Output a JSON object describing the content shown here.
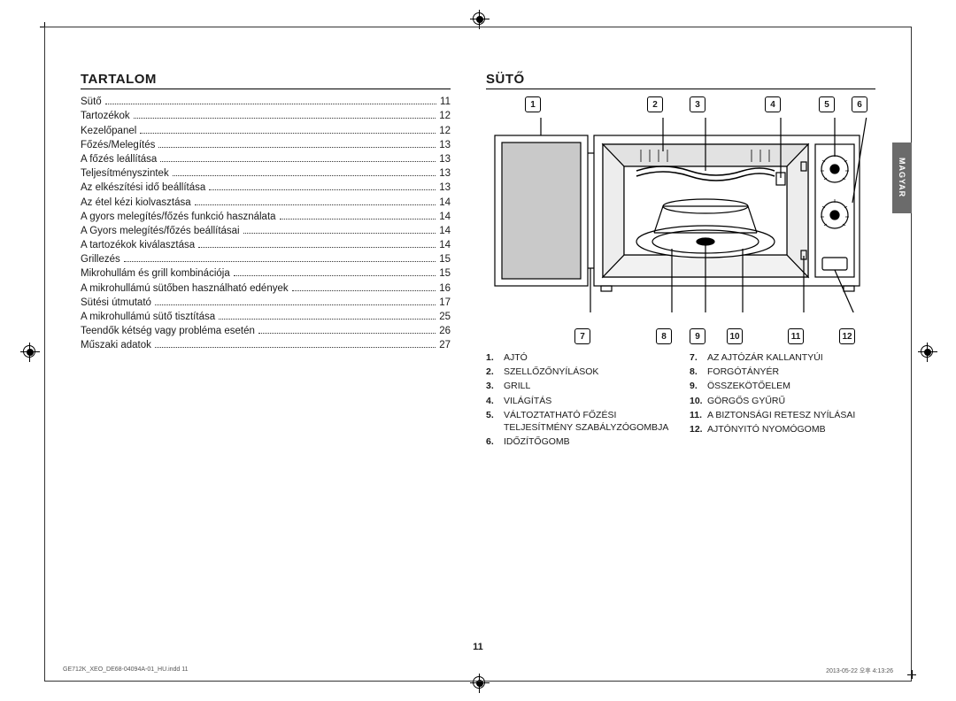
{
  "language_tab": "MAGYAR",
  "page_number": "11",
  "footer": {
    "left": "GE712K_XEO_DE68-04094A-01_HU.indd   11",
    "right": "2013-05-22   오후 4:13:26"
  },
  "left_column": {
    "title": "TARTALOM",
    "toc": [
      {
        "label": "Sütő",
        "page": "11"
      },
      {
        "label": "Tartozékok",
        "page": "12"
      },
      {
        "label": "Kezelőpanel",
        "page": "12"
      },
      {
        "label": "Főzés/Melegítés",
        "page": "13"
      },
      {
        "label": "A főzés leállítása",
        "page": "13"
      },
      {
        "label": "Teljesítményszintek",
        "page": "13"
      },
      {
        "label": "Az elkészítési idő beállítása",
        "page": "13"
      },
      {
        "label": "Az étel kézi kiolvasztása",
        "page": "14"
      },
      {
        "label": "A gyors melegítés/főzés funkció használata",
        "page": "14"
      },
      {
        "label": "A Gyors melegítés/főzés beállításai",
        "page": "14"
      },
      {
        "label": "A tartozékok kiválasztása",
        "page": "14"
      },
      {
        "label": "Grillezés",
        "page": "15"
      },
      {
        "label": "Mikrohullám és grill kombinációja",
        "page": "15"
      },
      {
        "label": "A mikrohullámú sütőben használható edények",
        "page": "16"
      },
      {
        "label": "Sütési útmutató",
        "page": "17"
      },
      {
        "label": "A mikrohullámú sütő tisztítása",
        "page": "25"
      },
      {
        "label": "Teendők kétség vagy probléma esetén",
        "page": "26"
      },
      {
        "label": "Műszaki adatok",
        "page": "27"
      }
    ]
  },
  "right_column": {
    "title": "SÜTŐ",
    "diagram": {
      "callouts_top": [
        "1",
        "2",
        "3",
        "4",
        "5",
        "6"
      ],
      "callouts_bottom": [
        "7",
        "8",
        "9",
        "10",
        "11",
        "12"
      ]
    },
    "legend_left": [
      {
        "n": "1.",
        "t": "AJTÓ"
      },
      {
        "n": "2.",
        "t": "SZELLŐZŐNYÍLÁSOK"
      },
      {
        "n": "3.",
        "t": "GRILL"
      },
      {
        "n": "4.",
        "t": "VILÁGÍTÁS"
      },
      {
        "n": "5.",
        "t": "VÁLTOZTATHATÓ FŐZÉSI TELJESÍTMÉNY SZABÁLYZÓGOMBJA"
      },
      {
        "n": "6.",
        "t": "IDŐZÍTŐGOMB"
      }
    ],
    "legend_right": [
      {
        "n": "7.",
        "t": "AZ AJTÓZÁR KALLANTYÚI"
      },
      {
        "n": "8.",
        "t": "FORGÓTÁNYÉR"
      },
      {
        "n": "9.",
        "t": "ÖSSZEKÖTŐELEM"
      },
      {
        "n": "10.",
        "t": "GÖRGŐS GYŰRŰ"
      },
      {
        "n": "11.",
        "t": "A BIZTONSÁGI RETESZ NYÍLÁSAI"
      },
      {
        "n": "12.",
        "t": "AJTÓNYITÓ NYOMÓGOMB"
      }
    ]
  }
}
